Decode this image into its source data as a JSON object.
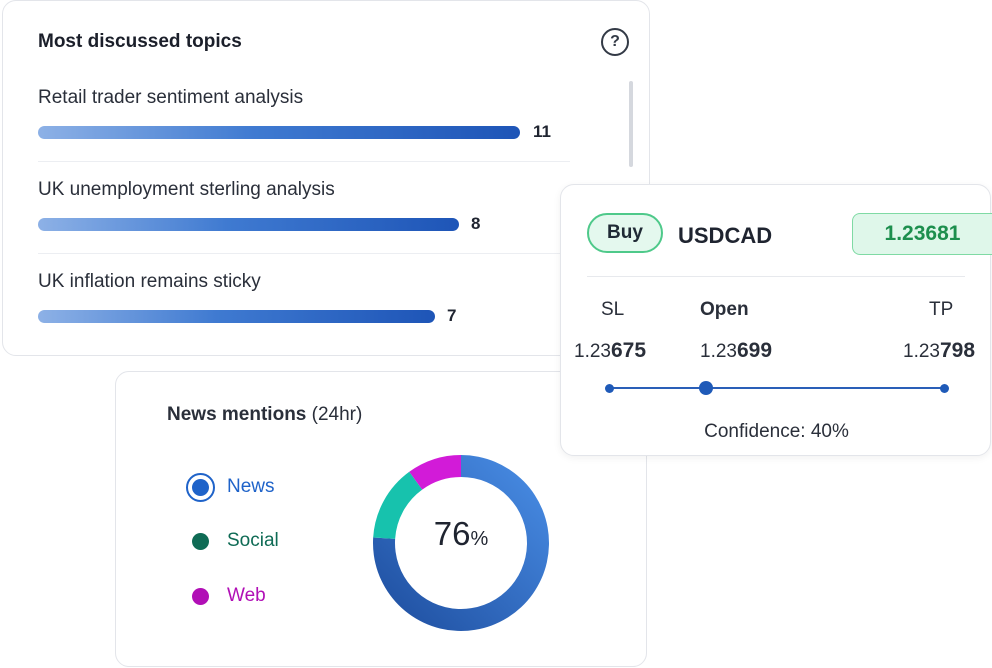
{
  "topics": {
    "title": "Most discussed topics",
    "help_glyph": "?",
    "items": [
      {
        "label": "Retail trader sentiment analysis",
        "count": "11",
        "value": 11
      },
      {
        "label": "UK unemployment sterling analysis",
        "count": "8",
        "value": 8
      },
      {
        "label": "UK inflation remains sticky",
        "count": "7",
        "value": 7
      }
    ],
    "bar_colors": [
      "#8db1e6",
      "#1e55b7"
    ]
  },
  "news": {
    "title": "News mentions",
    "subtitle": "(24hr)",
    "legend": [
      {
        "label": "News",
        "color": "#1f63c9",
        "selected": true
      },
      {
        "label": "Social",
        "color": "#0f6b55",
        "selected": false
      },
      {
        "label": "Web",
        "color": "#b10fb6",
        "selected": false
      }
    ],
    "center_value": "76",
    "center_unit": "%",
    "segments": [
      {
        "name": "News",
        "value": 76,
        "colors": [
          "#4b90e8",
          "#1c4b9c"
        ]
      },
      {
        "name": "Social",
        "value": 14,
        "colors": [
          "#17c2ad",
          "#17c2ad"
        ]
      },
      {
        "name": "Web",
        "value": 10,
        "colors": [
          "#d21bd8",
          "#d21bd8"
        ]
      }
    ]
  },
  "trade": {
    "side": "Buy",
    "pair": "USDCAD",
    "price": "1.23681",
    "levels": [
      {
        "key": "sl",
        "head": "SL",
        "prefix": "1.23",
        "suffix": "675"
      },
      {
        "key": "open",
        "head": "Open",
        "prefix": "1.23",
        "suffix": "699"
      },
      {
        "key": "tp",
        "head": "TP",
        "prefix": "1.23",
        "suffix": "798"
      }
    ],
    "confidence_label": "Confidence:",
    "confidence_value": "40%",
    "accent": "#1f5ab8",
    "price_color": "#1d8f4e"
  }
}
